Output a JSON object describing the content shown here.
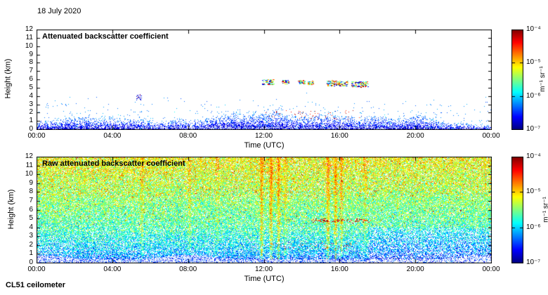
{
  "page": {
    "date_label": "18 July 2020",
    "footer_label": "CL51 ceilometer"
  },
  "chart_data": [
    {
      "type": "heatmap",
      "panel": "top",
      "title": "Attenuated backscatter coefficient",
      "xlabel": "Time (UTC)",
      "ylabel": "Height (km)",
      "x_ticks": [
        "00:00",
        "04:00",
        "08:00",
        "12:00",
        "16:00",
        "20:00",
        "00:00"
      ],
      "x_range_hours": [
        0,
        24
      ],
      "y_ticks": [
        "12",
        "11",
        "10",
        "9",
        "8",
        "7",
        "6",
        "5",
        "4",
        "3",
        "2",
        "1",
        "0"
      ],
      "y_range_km": [
        0,
        12
      ],
      "grid": false,
      "colorbar": {
        "unit": "m⁻¹ sr⁻¹",
        "scale": "log",
        "range": [
          "1e-7",
          "1e-4"
        ],
        "ticks": [
          "10⁻⁴",
          "10⁻⁵",
          "10⁻⁶",
          "10⁻⁷"
        ],
        "colormap": "jet",
        "position": "right"
      },
      "content": {
        "background": "white (below detection threshold)",
        "surface_layer": {
          "base_top_km": 1.3,
          "max_top_km": 2.4,
          "description": "continuous dense blue near-surface aerosol speckle below ~2 km for all 24 h, deep blue at the bottom thinning upward"
        },
        "elevated_clusters": [
          {
            "t0": 11.9,
            "t1": 12.5,
            "h0": 5.4,
            "h1": 6.0
          },
          {
            "t0": 12.95,
            "t1": 13.3,
            "h0": 5.5,
            "h1": 5.95
          },
          {
            "t0": 13.8,
            "t1": 14.15,
            "h0": 5.5,
            "h1": 5.9
          },
          {
            "t0": 14.3,
            "t1": 14.6,
            "h0": 5.4,
            "h1": 5.8
          },
          {
            "t0": 15.3,
            "t1": 16.4,
            "h0": 5.2,
            "h1": 5.9
          },
          {
            "t0": 16.6,
            "t1": 17.5,
            "h0": 5.1,
            "h1": 5.8
          }
        ],
        "mid_cluster": {
          "t0": 5.25,
          "t1": 5.55,
          "h0": 3.5,
          "h1": 4.2
        },
        "low_specks": {
          "t0": 12.0,
          "t1": 17.3,
          "h0": 1.2,
          "h1": 2.3,
          "count": 70
        }
      }
    },
    {
      "type": "heatmap",
      "panel": "bottom",
      "title": "Raw attenuated backscatter coefficient",
      "xlabel": "Time (UTC)",
      "ylabel": "Height (km)",
      "x_ticks": [
        "00:00",
        "04:00",
        "08:00",
        "12:00",
        "16:00",
        "20:00",
        "00:00"
      ],
      "x_range_hours": [
        0,
        24
      ],
      "y_ticks": [
        "12",
        "11",
        "10",
        "9",
        "8",
        "7",
        "6",
        "5",
        "4",
        "3",
        "2",
        "1",
        "0"
      ],
      "y_range_km": [
        0,
        12
      ],
      "grid": false,
      "colorbar": {
        "unit": "m⁻¹ sr⁻¹",
        "scale": "log",
        "range": [
          "1e-7",
          "1e-4"
        ],
        "ticks": [
          "10⁻⁴",
          "10⁻⁵",
          "10⁻⁶",
          "10⁻⁷"
        ],
        "colormap": "jet",
        "position": "right"
      },
      "content": {
        "background": "full-field speckle noise: dark blue and white below ~2 km, cyan-green 2-8 km, green with yellow-orange flecks 8-12 km",
        "streaks": [
          {
            "t": 5.55,
            "s": 0.5
          },
          {
            "t": 8.05,
            "s": 0.45
          },
          {
            "t": 9.5,
            "s": 0.35
          },
          {
            "t": 11.85,
            "s": 0.9
          },
          {
            "t": 12.35,
            "s": 1.0
          },
          {
            "t": 12.75,
            "s": 0.8
          },
          {
            "t": 13.1,
            "s": 0.5
          },
          {
            "t": 15.35,
            "s": 0.9
          },
          {
            "t": 15.75,
            "s": 0.85
          },
          {
            "t": 16.05,
            "s": 0.7
          },
          {
            "t": 17.3,
            "s": 0.4
          }
        ],
        "cloud_line": {
          "t0": 14.4,
          "t1": 17.5,
          "h0": 4.6,
          "h1": 5.0,
          "count": 70
        },
        "low_specks": {
          "t0": 12.0,
          "t1": 17.3,
          "h0": 1.6,
          "h1": 2.3,
          "count": 55
        },
        "surface_band": {
          "top_km": 0.35,
          "wedge_times_h": [
            0.5,
            8.0,
            23.5
          ],
          "description": "bright pale blue surface-return band with taller pale wedges"
        }
      }
    }
  ]
}
